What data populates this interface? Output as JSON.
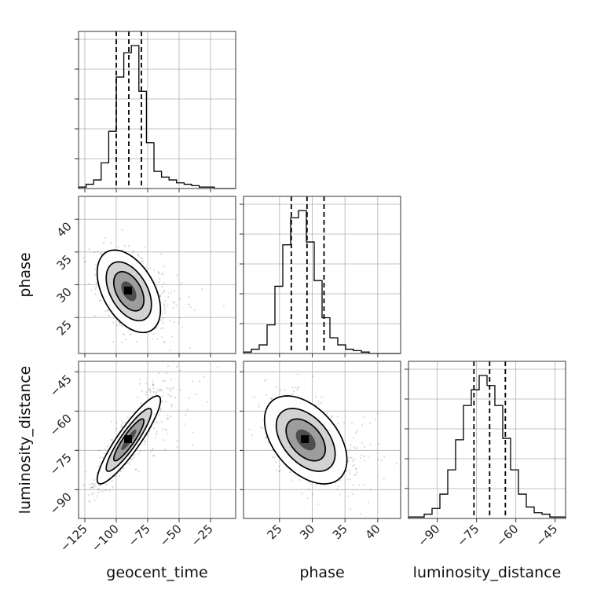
{
  "chart_data": {
    "type": "corner",
    "parameters": [
      "geocent_time",
      "phase",
      "luminosity_distance"
    ],
    "axes": {
      "geocent_time": {
        "label": "geocent_time",
        "range": [
          -130,
          -5
        ],
        "ticks": [
          -125,
          -100,
          -75,
          -50,
          -25
        ],
        "tick_labels": [
          "−125",
          "−100",
          "−75",
          "−50",
          "−25"
        ]
      },
      "phase": {
        "label": "phase",
        "range": [
          19.5,
          43.5
        ],
        "ticks": [
          25,
          30,
          35,
          40
        ],
        "tick_labels": [
          "25",
          "30",
          "35",
          "40"
        ]
      },
      "luminosity_distance": {
        "label": "luminosity_distance",
        "range": [
          -101,
          -41
        ],
        "ticks": [
          -90,
          -75,
          -60,
          -45
        ],
        "tick_labels": [
          "−90",
          "−75",
          "−60",
          "−45"
        ]
      }
    },
    "histograms": [
      {
        "param": "geocent_time",
        "bin_edges": [
          -130,
          -124,
          -118,
          -112,
          -106,
          -100,
          -94,
          -88,
          -82,
          -76,
          -70,
          -64,
          -58,
          -52,
          -46,
          -40,
          -34,
          -28,
          -22,
          -16,
          -10,
          -5
        ],
        "counts": [
          1,
          3,
          6,
          18,
          40,
          78,
          95,
          100,
          68,
          32,
          12,
          8,
          6,
          4,
          3,
          2,
          1,
          1,
          0,
          0,
          0
        ],
        "quantiles": [
          -100,
          -90,
          -80
        ]
      },
      {
        "param": "phase",
        "bin_edges": [
          19.5,
          20.7,
          21.9,
          23.1,
          24.3,
          25.5,
          26.7,
          27.9,
          29.1,
          30.3,
          31.5,
          32.7,
          33.9,
          35.1,
          36.3,
          37.5,
          38.7,
          39.9,
          41.1,
          42.3,
          43.5
        ],
        "counts": [
          1,
          3,
          6,
          20,
          47,
          76,
          95,
          100,
          78,
          51,
          25,
          11,
          6,
          3,
          2,
          1,
          0,
          0,
          0,
          0
        ],
        "quantiles": [
          26.8,
          29.2,
          31.8
        ]
      },
      {
        "param": "luminosity_distance",
        "bin_edges": [
          -101,
          -98,
          -95,
          -92,
          -89,
          -86,
          -83,
          -80,
          -77,
          -74,
          -71,
          -68,
          -65,
          -62,
          -59,
          -56,
          -53,
          -50,
          -47,
          -44,
          -41
        ],
        "counts": [
          1,
          1,
          3,
          7,
          17,
          34,
          55,
          79,
          90,
          100,
          93,
          79,
          56,
          34,
          17,
          8,
          4,
          3,
          1,
          1
        ],
        "quantiles": [
          -76,
          -70,
          -64
        ]
      }
    ],
    "contours_2d": [
      {
        "x": "geocent_time",
        "y": "phase",
        "center": [
          -90,
          29
        ],
        "correlation": "negative"
      },
      {
        "x": "geocent_time",
        "y": "luminosity_distance",
        "center": [
          -90,
          -71
        ],
        "correlation": "positive"
      },
      {
        "x": "phase",
        "y": "luminosity_distance",
        "center": [
          29,
          -71
        ],
        "correlation": "negative"
      }
    ],
    "grid": true
  }
}
